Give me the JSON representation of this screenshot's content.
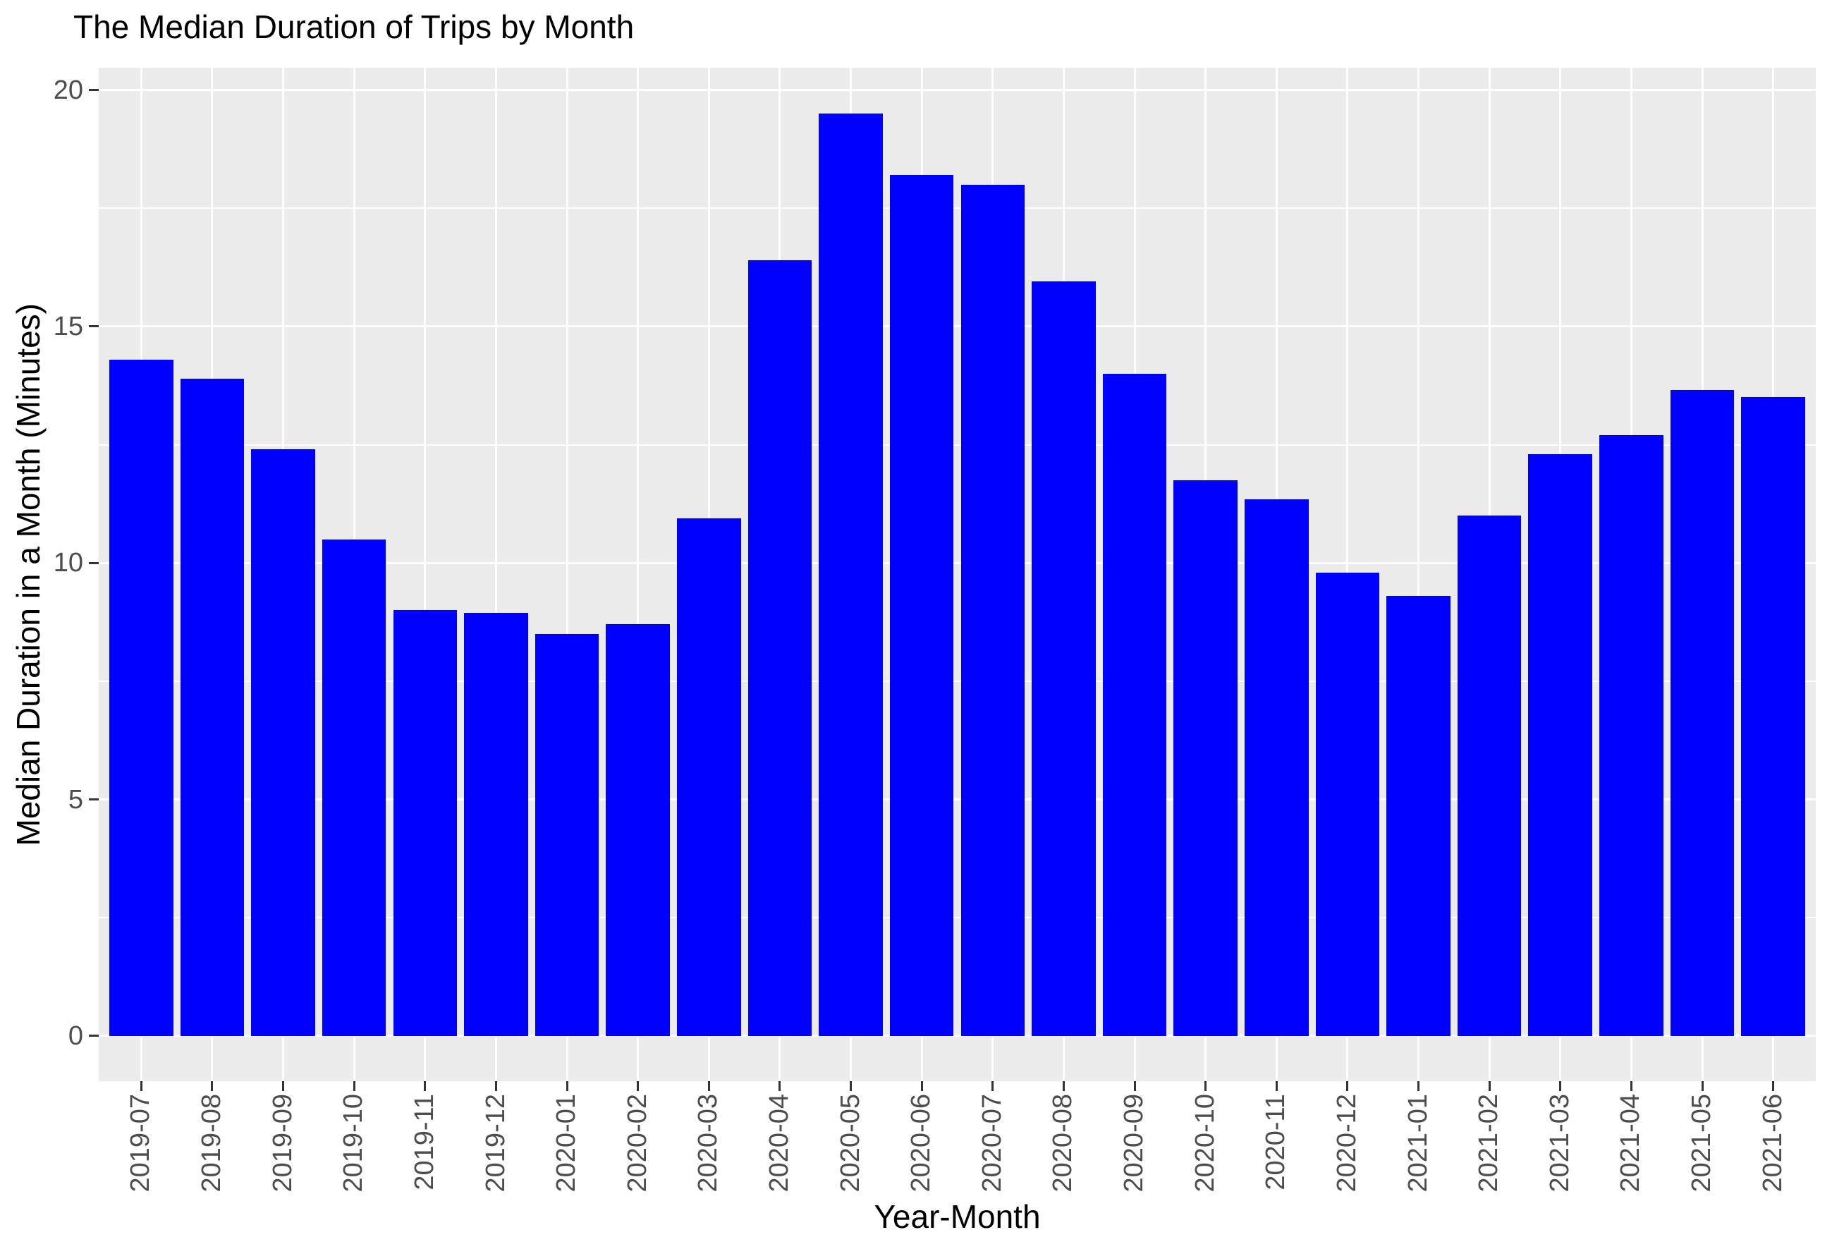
{
  "chart_data": {
    "type": "bar",
    "title": "The Median Duration of Trips by Month",
    "xlabel": "Year-Month",
    "ylabel": "Median Duration in a Month (Minutes)",
    "categories": [
      "2019-07",
      "2019-08",
      "2019-09",
      "2019-10",
      "2019-11",
      "2019-12",
      "2020-01",
      "2020-02",
      "2020-03",
      "2020-04",
      "2020-05",
      "2020-06",
      "2020-07",
      "2020-08",
      "2020-09",
      "2020-10",
      "2020-11",
      "2020-12",
      "2021-01",
      "2021-02",
      "2021-03",
      "2021-04",
      "2021-05",
      "2021-06"
    ],
    "values": [
      14.3,
      13.9,
      12.4,
      10.5,
      9.0,
      8.95,
      8.5,
      8.7,
      10.95,
      16.4,
      19.5,
      18.2,
      18.0,
      15.95,
      14.0,
      11.75,
      11.35,
      9.8,
      9.3,
      11.0,
      12.3,
      12.7,
      13.65,
      13.5
    ],
    "yticks": [
      0,
      5,
      10,
      15,
      20
    ],
    "minor_yticks": [
      2.5,
      7.5,
      12.5,
      17.5
    ],
    "ylim": [
      0,
      20
    ],
    "grid": "on",
    "legend": "none",
    "colors": {
      "bar_fill": "#0000FF",
      "panel_background": "#EBEBEB",
      "gridline": "#FFFFFF",
      "axis_text": "#4D4D4D",
      "tick_mark": "#333333",
      "title_text": "#000000"
    }
  }
}
